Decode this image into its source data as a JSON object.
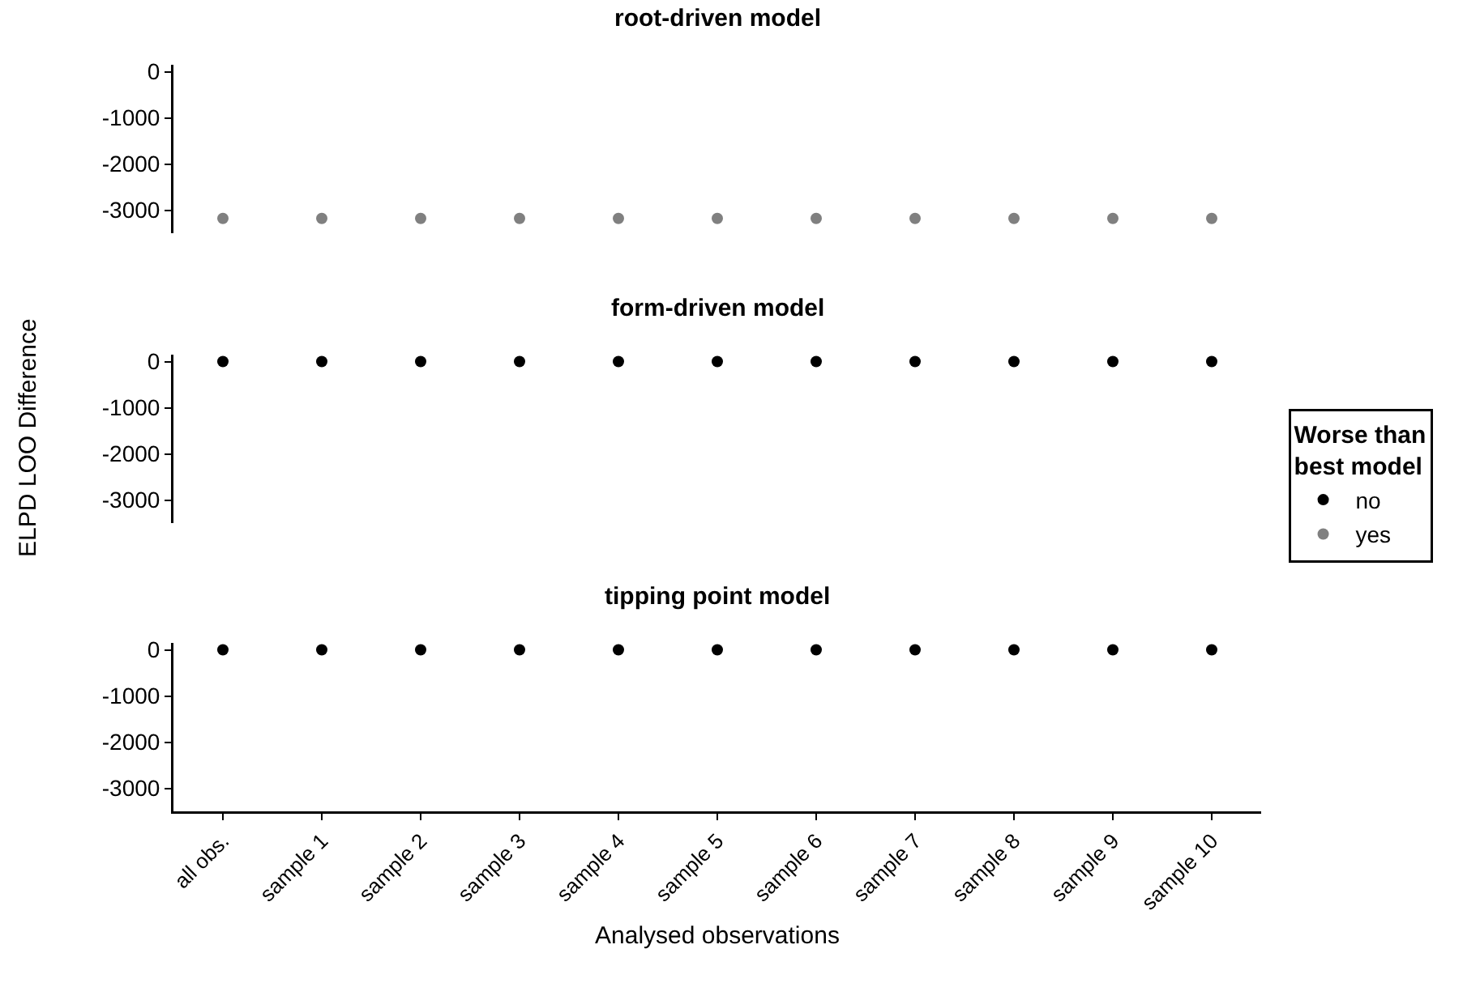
{
  "chart_data": [
    {
      "type": "scatter",
      "title": "root-driven model",
      "categories": [
        "all obs.",
        "sample 1",
        "sample 2",
        "sample 3",
        "sample 4",
        "sample 5",
        "sample 6",
        "sample 7",
        "sample 8",
        "sample 9",
        "sample 10"
      ],
      "ylim": [
        -3500,
        150
      ],
      "yticks": [
        0,
        -1000,
        -2000,
        -3000
      ],
      "tick_labels": "y",
      "marker": "circle",
      "legend": "right",
      "legend_title": "Worse than best model",
      "series": [
        {
          "name": "yes",
          "color": "#808080",
          "values": [
            -3180,
            -3180,
            -3180,
            -3180,
            -3180,
            -3180,
            -3180,
            -3180,
            -3180,
            -3180,
            -3180
          ]
        }
      ]
    },
    {
      "type": "scatter",
      "title": "form-driven model",
      "ylabel": "ELPD LOO Difference",
      "categories": [
        "all obs.",
        "sample 1",
        "sample 2",
        "sample 3",
        "sample 4",
        "sample 5",
        "sample 6",
        "sample 7",
        "sample 8",
        "sample 9",
        "sample 10"
      ],
      "ylim": [
        -3500,
        150
      ],
      "yticks": [
        0,
        -1000,
        -2000,
        -3000
      ],
      "tick_labels": "y",
      "marker": "circle",
      "legend": "right",
      "series": [
        {
          "name": "no",
          "color": "#000000",
          "values": [
            0,
            0,
            0,
            0,
            0,
            0,
            0,
            0,
            0,
            0,
            0
          ]
        }
      ]
    },
    {
      "type": "scatter",
      "title": "tipping point model",
      "xlabel": "Analysed observations",
      "categories": [
        "all obs.",
        "sample 1",
        "sample 2",
        "sample 3",
        "sample 4",
        "sample 5",
        "sample 6",
        "sample 7",
        "sample 8",
        "sample 9",
        "sample 10"
      ],
      "ylim": [
        -3500,
        150
      ],
      "yticks": [
        0,
        -1000,
        -2000,
        -3000
      ],
      "marker": "circle",
      "legend": "right",
      "series": [
        {
          "name": "no",
          "color": "#000000",
          "values": [
            0,
            0,
            0,
            0,
            0,
            0,
            0,
            0,
            0,
            0,
            0
          ]
        }
      ]
    }
  ]
}
